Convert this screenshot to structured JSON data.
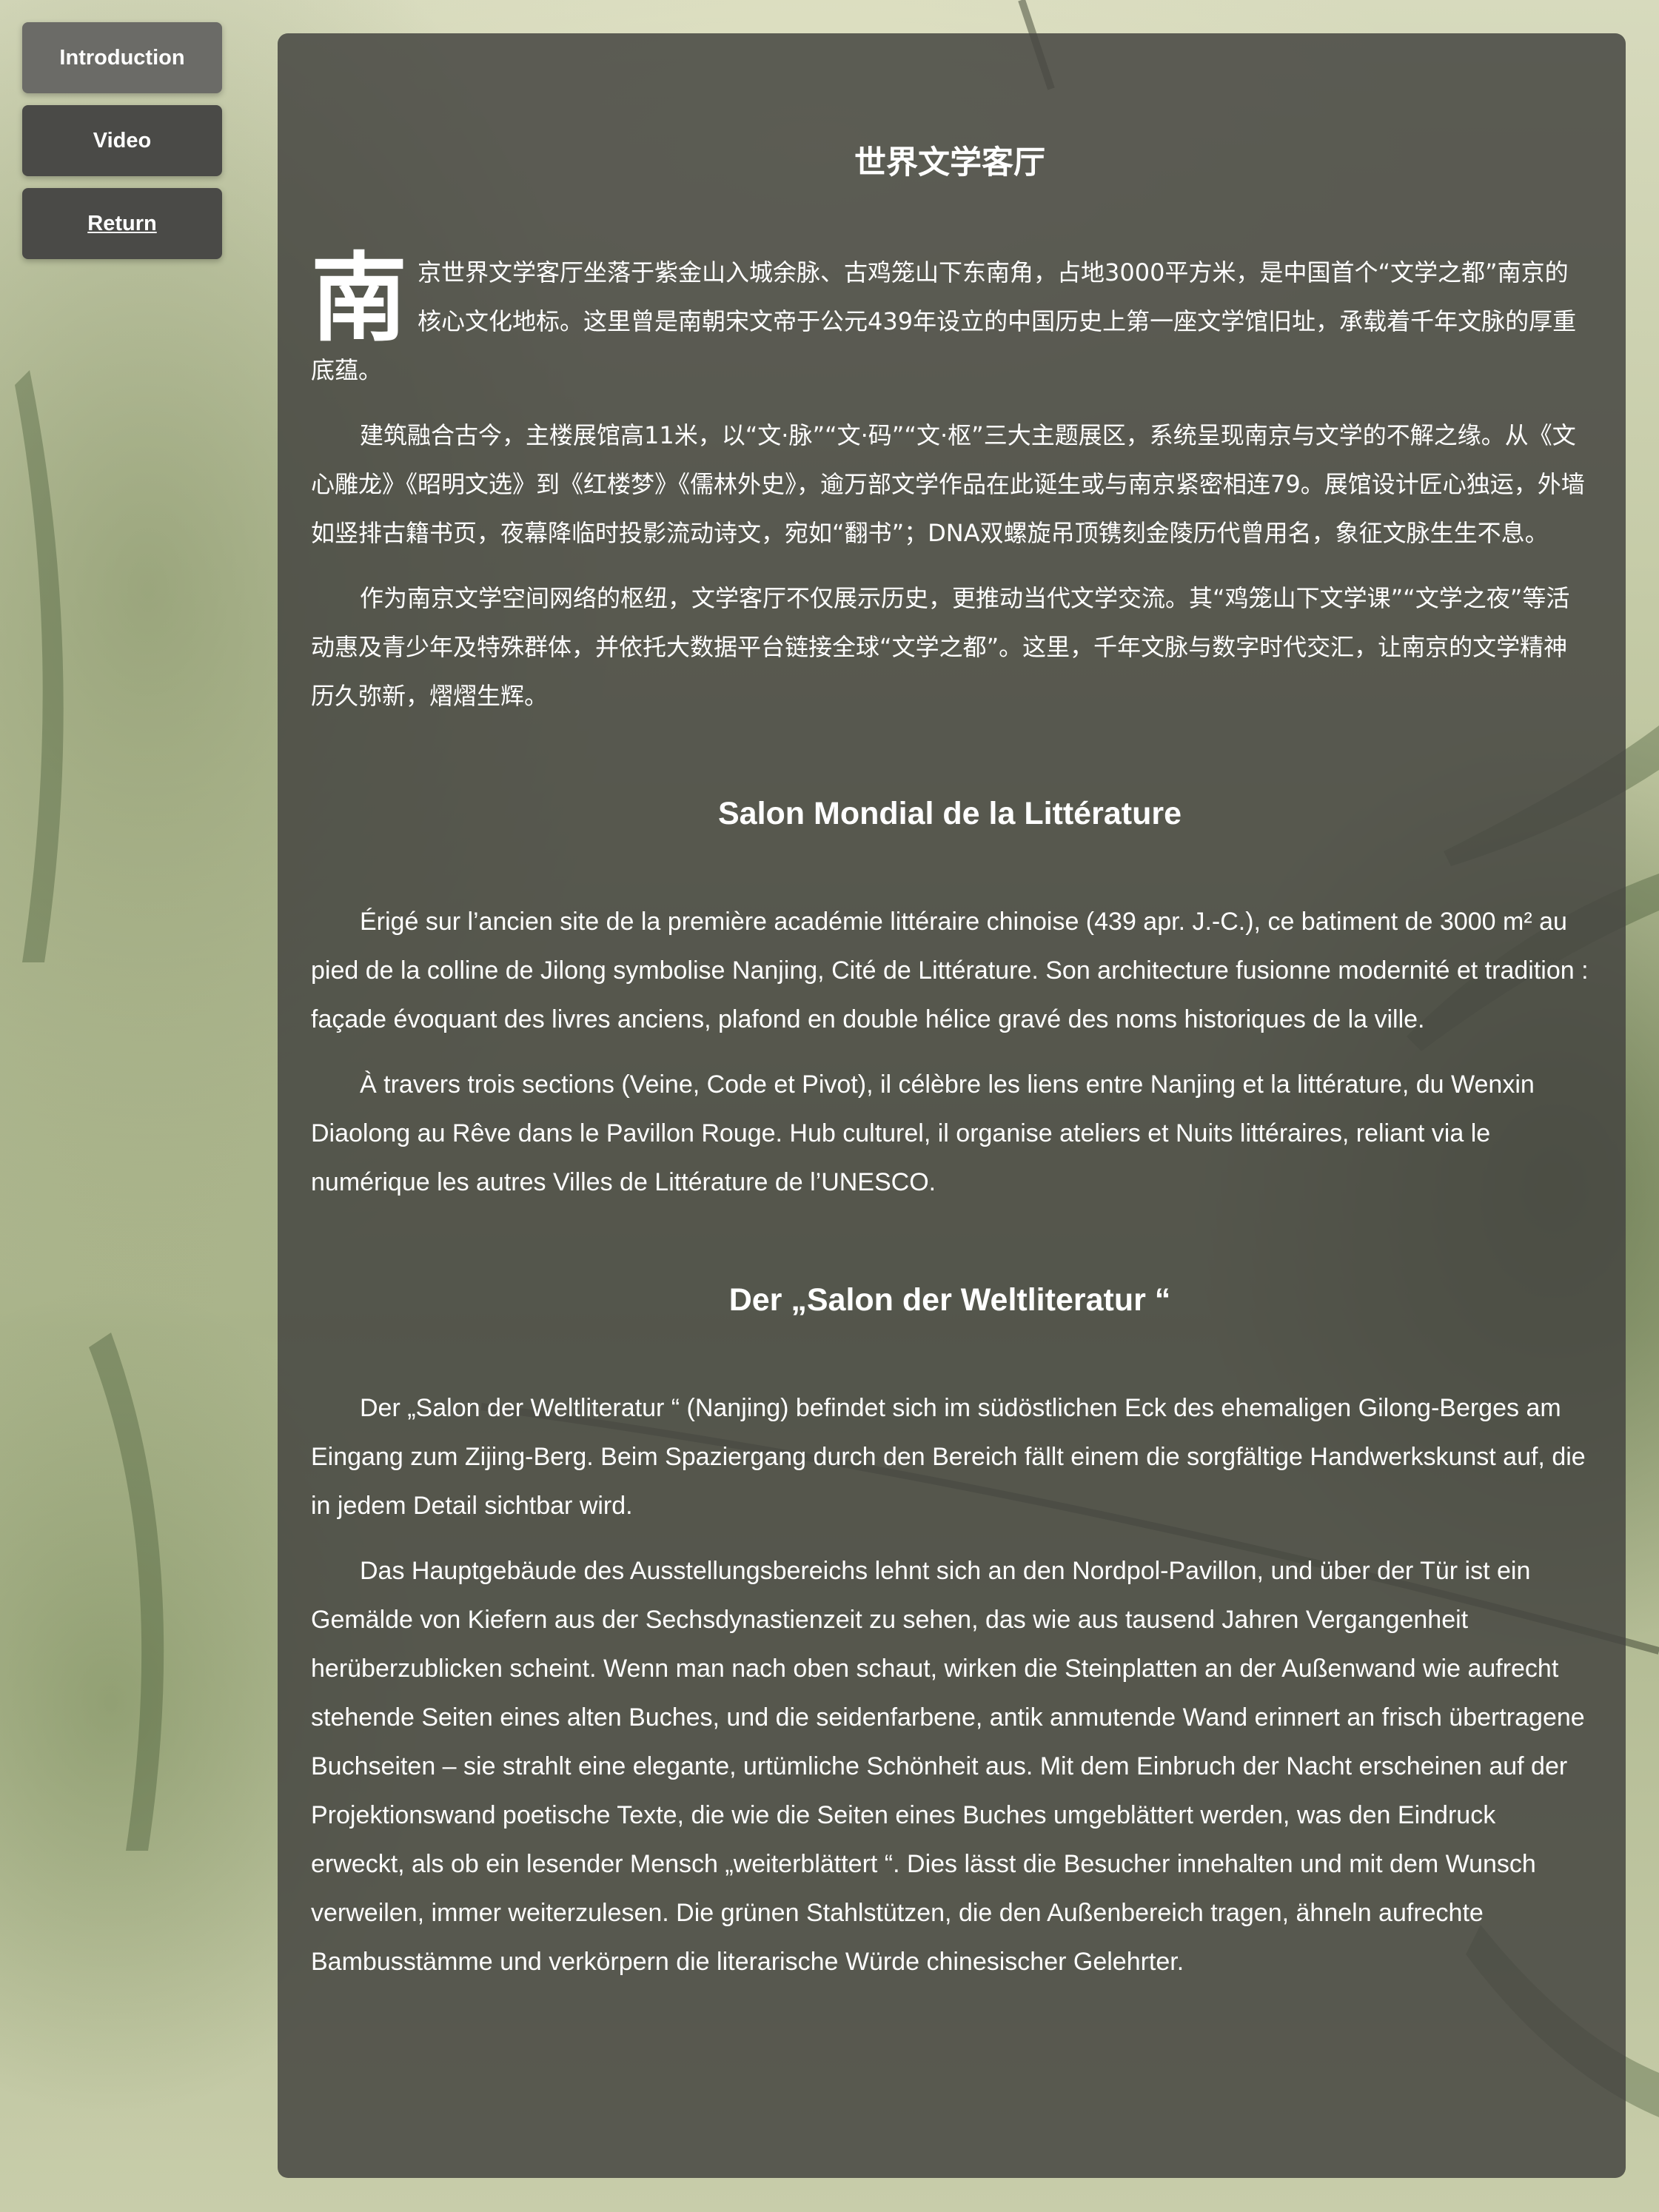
{
  "nav": {
    "items": [
      {
        "label": "Introduction"
      },
      {
        "label": "Video"
      },
      {
        "label": "Return"
      }
    ]
  },
  "zh": {
    "title": "世界文学客厅",
    "dropcap": "南",
    "paragraphs": [
      "京世界文学客厅坐落于紫金山入城余脉、古鸡笼山下东南角，占地3000平方米，是中国首个“文学之都”南京的核心文化地标。这里曾是南朝宋文帝于公元439年设立的中国历史上第一座文学馆旧址，承载着千年文脉的厚重底蕴。",
      "建筑融合古今，主楼展馆高11米，以“文·脉”“文·码”“文·枢”三大主题展区，系统呈现南京与文学的不解之缘。从《文心雕龙》《昭明文选》到《红楼梦》《儒林外史》，逾万部文学作品在此诞生或与南京紧密相连79。展馆设计匠心独运，外墙如竖排古籍书页，夜幕降临时投影流动诗文，宛如“翻书”；DNA双螺旋吊顶镌刻金陵历代曾用名，象征文脉生生不息。",
      "作为南京文学空间网络的枢纽，文学客厅不仅展示历史，更推动当代文学交流。其“鸡笼山下文学课”“文学之夜”等活动惠及青少年及特殊群体，并依托大数据平台链接全球“文学之都”。这里，千年文脉与数字时代交汇，让南京的文学精神历久弥新，熠熠生辉。"
    ]
  },
  "fr": {
    "title": "Salon Mondial de la Littérature",
    "paragraphs": [
      "Érigé sur l’ancien site de la première académie littéraire chinoise (439 apr. J.-C.), ce batiment de 3000 m² au pied de la colline de Jilong symbolise Nanjing, Cité de Littérature. Son architecture fusionne modernité et tradition : façade évoquant des livres anciens, plafond en double hélice gravé des noms historiques de la ville.",
      "À travers trois sections (Veine, Code et Pivot), il célèbre les liens entre Nanjing et la littérature, du Wenxin Diaolong au Rêve dans le Pavillon Rouge. Hub culturel, il organise ateliers et Nuits littéraires, reliant via le numérique les autres Villes de Littérature de l’UNESCO."
    ]
  },
  "de": {
    "title": "Der „Salon der Weltliteratur “",
    "paragraphs": [
      "Der „Salon der Weltliteratur “ (Nanjing) befindet sich im südöstlichen Eck des ehemaligen Gilong-Berges am Eingang zum Zijing-Berg. Beim Spaziergang durch den Bereich fällt einem die sorgfältige Handwerkskunst auf, die in jedem Detail sichtbar wird.",
      "Das Hauptgebäude des Ausstellungsbereichs lehnt sich an den Nordpol-Pavillon, und über der Tür ist ein Gemälde von Kiefern aus der Sechsdynastienzeit zu sehen, das wie aus tausend Jahren Vergangenheit herüberzublicken scheint. Wenn man nach oben schaut, wirken die Steinplatten an der Außenwand wie aufrecht stehende Seiten eines alten Buches, und die seidenfarbene, antik anmutende Wand erinnert an frisch übertragene Buchseiten – sie strahlt eine elegante, urtümliche Schönheit aus. Mit dem Einbruch der Nacht erscheinen auf der Projektionswand poetische Texte, die wie die Seiten eines Buches umgeblättert werden, was den Eindruck erweckt, als ob ein lesender Mensch „weiterblättert “. Dies lässt die Besucher innehalten und mit dem Wunsch verweilen, immer weiterzulesen. Die grünen Stahlstützen, die den Außenbereich tragen, ähneln aufrechte Bambusstämme und verkörpern die literarische Würde chinesischer Gelehrter."
    ]
  }
}
